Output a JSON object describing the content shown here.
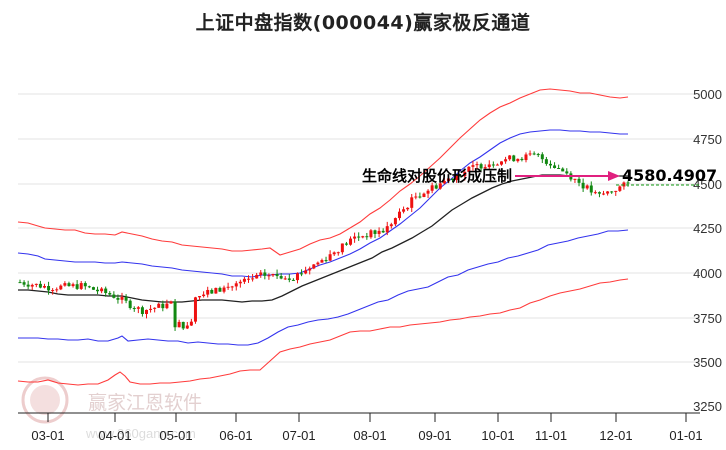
{
  "title": "上证中盘指数(000044)赢家极反通道",
  "annotation": {
    "text": "生命线对股价形成压制",
    "value": "4580.4907",
    "arrow_color": "#e0207f"
  },
  "watermark": {
    "brand": "赢家江恩软件",
    "url": "www.360gann.com",
    "seal": "江恩"
  },
  "colors": {
    "outer_band": "#ff3333",
    "inner_band": "#3333ee",
    "life_line": "#222222",
    "up_candle": "#ee1111",
    "down_candle": "#118811",
    "grid": "#e3e3e3",
    "value_dotted": "#119911"
  },
  "chart_data": {
    "type": "line",
    "title": "上证中盘指数(000044)赢家极反通道",
    "xlabel": "",
    "ylabel": "",
    "x_tick_labels": [
      "03-01",
      "04-01",
      "05-01",
      "06-01",
      "07-01",
      "08-01",
      "09-01",
      "10-01",
      "11-01",
      "12-01",
      "01-01"
    ],
    "y_tick_labels": [
      "5000",
      "4750",
      "4500",
      "4250",
      "4000",
      "3750",
      "3500",
      "3250"
    ],
    "ylim": [
      3250,
      5100
    ],
    "grid": true,
    "legend": "none",
    "x": [
      "02-15",
      "03-01",
      "03-15",
      "04-01",
      "04-15",
      "05-01",
      "05-15",
      "06-01",
      "06-15",
      "07-01",
      "07-15",
      "08-01",
      "08-15",
      "09-01",
      "09-15",
      "10-01",
      "10-15",
      "11-01",
      "11-15",
      "12-01",
      "12-08"
    ],
    "series": [
      {
        "name": "upper outer band (red)",
        "values": [
          4450,
          4420,
          4400,
          4380,
          4360,
          4330,
          4310,
          4290,
          4280,
          4290,
          4350,
          4440,
          4560,
          4700,
          4850,
          4960,
          5030,
          5060,
          5050,
          5020,
          5010
        ]
      },
      {
        "name": "upper inner band (blue)",
        "values": [
          4170,
          4140,
          4100,
          4080,
          4070,
          4050,
          4040,
          4040,
          4030,
          4040,
          4100,
          4210,
          4330,
          4450,
          4560,
          4660,
          4740,
          4790,
          4800,
          4790,
          4780
        ]
      },
      {
        "name": "life line (black)",
        "values": [
          3940,
          3930,
          3910,
          3900,
          3880,
          3870,
          3860,
          3860,
          3860,
          3880,
          3950,
          4040,
          4130,
          4240,
          4350,
          4440,
          4510,
          4560,
          4580,
          4580,
          4580
        ]
      },
      {
        "name": "lower inner band (blue)",
        "values": [
          3670,
          3670,
          3660,
          3680,
          3650,
          3640,
          3620,
          3610,
          3650,
          3690,
          3730,
          3790,
          3840,
          3900,
          3960,
          4030,
          4110,
          4180,
          4220,
          4250,
          4270
        ]
      },
      {
        "name": "lower outer band (red)",
        "values": [
          3410,
          3410,
          3400,
          3450,
          3410,
          3420,
          3400,
          3410,
          3440,
          3500,
          3580,
          3640,
          3680,
          3710,
          3740,
          3790,
          3850,
          3900,
          3950,
          3990,
          4000
        ]
      },
      {
        "name": "close (candlesticks)",
        "values": [
          3950,
          3920,
          3930,
          3880,
          3790,
          3830,
          3880,
          3930,
          3990,
          3980,
          4080,
          4200,
          4240,
          4430,
          4520,
          4600,
          4640,
          4660,
          4560,
          4430,
          4500
        ]
      }
    ],
    "annotations": [
      {
        "text": "生命线对股价形成压制",
        "value": 4580.4907,
        "arrow": "horizontal, pink"
      }
    ]
  }
}
